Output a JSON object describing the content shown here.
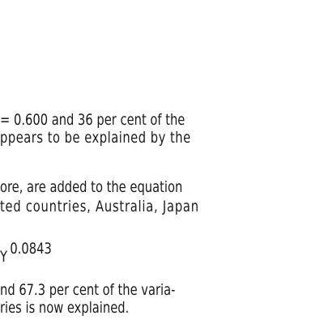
{
  "document": {
    "line_1": "= 0.600 and 36 per cent of the",
    "line_2": "ppears to be explained by the",
    "line_3": "ore, are added to the equation",
    "line_4": "ted countries, Australia, Japan",
    "equation": {
      "variable": "Y",
      "exponent": "0.0843"
    },
    "line_5": "nd 67.3 per cent of the varia-",
    "line_6": "ries is now explained."
  }
}
